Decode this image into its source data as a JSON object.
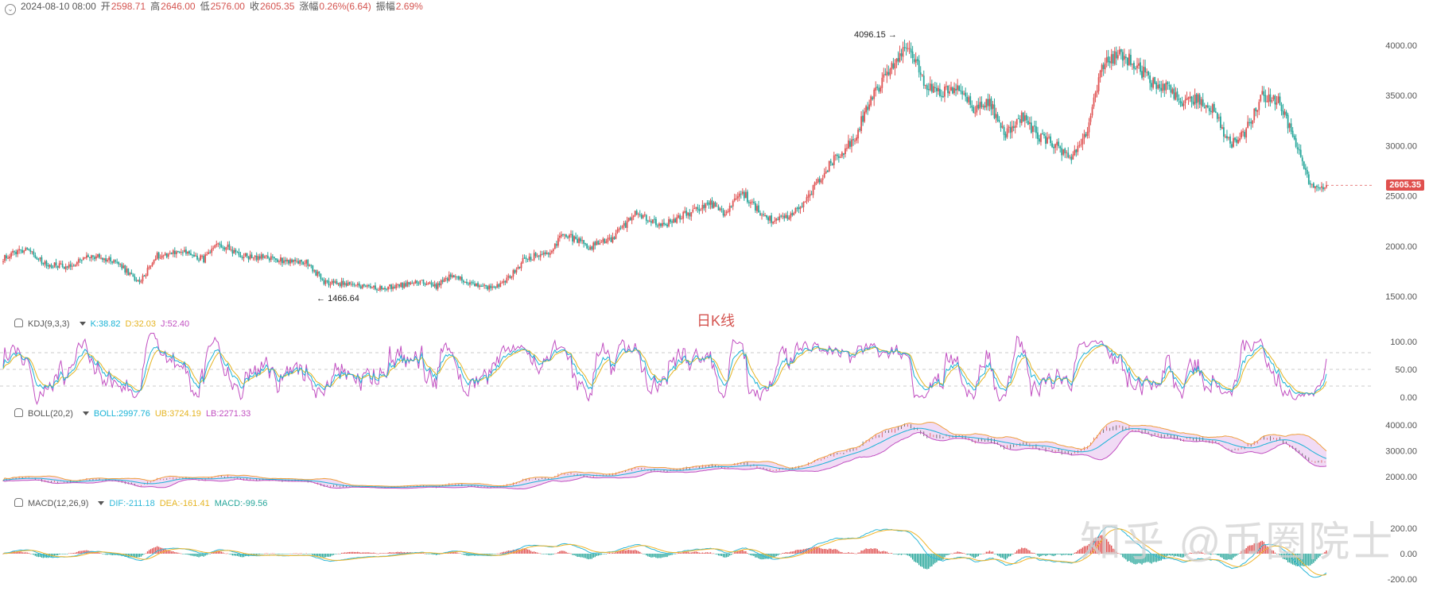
{
  "header": {
    "date": "2024-08-10 08:00",
    "open_label": "开",
    "open": "2598.71",
    "high_label": "高",
    "high": "2646.00",
    "low_label": "低",
    "low": "2576.00",
    "close_label": "收",
    "close": "2605.35",
    "change_label": "涨幅",
    "change": "0.26%(6.64)",
    "amp_label": "振幅",
    "amp": "2.69%"
  },
  "caption": "日K线",
  "watermark": "知乎 @币圈院士",
  "price_tag": "2605.35",
  "colors": {
    "up": "#e05353",
    "down": "#26a69a",
    "k": "#1ab3d6",
    "d": "#e5b422",
    "j": "#c14fc1",
    "boll_mid": "#1ab3d6",
    "boll_ub": "#f0a03c",
    "boll_lb": "#c14fc1",
    "boll_fill": "#f1dbf5",
    "dif": "#2fb8d8",
    "dea": "#f0b428"
  },
  "kdj": {
    "title": "KDJ(9,3,3)",
    "k": "K:38.82",
    "d": "D:32.03",
    "j": "J:52.40"
  },
  "boll": {
    "title": "BOLL(20,2)",
    "mid": "BOLL:2997.76",
    "ub": "UB:3724.19",
    "lb": "LB:2271.33"
  },
  "macd": {
    "title": "MACD(12,26,9)",
    "dif": "DIF:-211.18",
    "dea": "DEA:-161.41",
    "macd": "MACD:-99.56"
  },
  "chart_data": [
    {
      "type": "candlestick",
      "title": "",
      "y_ticks": [
        "4000.00",
        "3500.00",
        "3000.00",
        "2500.00",
        "2000.00",
        "1500.00"
      ],
      "ylim": [
        1400,
        4200
      ],
      "max_label": "4096.15",
      "min_label": "1466.64",
      "anchors": [
        [
          0,
          1880
        ],
        [
          15,
          1990
        ],
        [
          25,
          1820
        ],
        [
          40,
          1800
        ],
        [
          55,
          1900
        ],
        [
          70,
          1850
        ],
        [
          85,
          1630
        ],
        [
          95,
          1900
        ],
        [
          110,
          1950
        ],
        [
          125,
          1870
        ],
        [
          135,
          2020
        ],
        [
          150,
          1900
        ],
        [
          170,
          1870
        ],
        [
          190,
          1830
        ],
        [
          200,
          1640
        ],
        [
          215,
          1620
        ],
        [
          230,
          1580
        ],
        [
          245,
          1600
        ],
        [
          260,
          1640
        ],
        [
          270,
          1600
        ],
        [
          280,
          1720
        ],
        [
          290,
          1620
        ],
        [
          305,
          1580
        ],
        [
          315,
          1680
        ],
        [
          325,
          1870
        ],
        [
          340,
          1940
        ],
        [
          350,
          2120
        ],
        [
          365,
          1990
        ],
        [
          380,
          2080
        ],
        [
          395,
          2340
        ],
        [
          410,
          2200
        ],
        [
          425,
          2310
        ],
        [
          440,
          2420
        ],
        [
          450,
          2330
        ],
        [
          460,
          2560
        ],
        [
          470,
          2360
        ],
        [
          480,
          2260
        ],
        [
          490,
          2290
        ],
        [
          500,
          2450
        ],
        [
          510,
          2700
        ],
        [
          520,
          2900
        ],
        [
          530,
          3050
        ],
        [
          540,
          3450
        ],
        [
          550,
          3700
        ],
        [
          560,
          3950
        ],
        [
          565,
          4000
        ],
        [
          575,
          3580
        ],
        [
          585,
          3530
        ],
        [
          595,
          3600
        ],
        [
          605,
          3350
        ],
        [
          615,
          3420
        ],
        [
          625,
          3100
        ],
        [
          635,
          3300
        ],
        [
          645,
          3100
        ],
        [
          655,
          3020
        ],
        [
          665,
          2870
        ],
        [
          675,
          3120
        ],
        [
          685,
          3820
        ],
        [
          695,
          3900
        ],
        [
          705,
          3830
        ],
        [
          715,
          3650
        ],
        [
          725,
          3580
        ],
        [
          735,
          3420
        ],
        [
          745,
          3470
        ],
        [
          755,
          3350
        ],
        [
          765,
          3000
        ],
        [
          775,
          3150
        ],
        [
          785,
          3500
        ],
        [
          795,
          3440
        ],
        [
          805,
          3050
        ],
        [
          815,
          2620
        ],
        [
          820,
          2590
        ],
        [
          825,
          2605
        ]
      ]
    },
    {
      "type": "line",
      "title": "",
      "series": [
        {
          "name": "K"
        },
        {
          "name": "D"
        },
        {
          "name": "J"
        }
      ],
      "y_ticks": [
        "100.00",
        "50.00",
        "0.00"
      ],
      "ylim": [
        -10,
        110
      ],
      "last": {
        "K": 38.82,
        "D": 32.03,
        "J": 52.4
      }
    },
    {
      "type": "line",
      "title": "",
      "series": [
        {
          "name": "BOLL"
        },
        {
          "name": "UB"
        },
        {
          "name": "LB"
        }
      ],
      "y_ticks": [
        "4000.00",
        "3000.00",
        "2000.00"
      ],
      "ylim": [
        1400,
        4200
      ],
      "last": {
        "BOLL": 2997.76,
        "UB": 3724.19,
        "LB": 2271.33
      }
    },
    {
      "type": "bar",
      "title": "",
      "series": [
        {
          "name": "DIF"
        },
        {
          "name": "DEA"
        },
        {
          "name": "MACD"
        }
      ],
      "y_ticks": [
        "200.00",
        "0.00",
        "-200.00"
      ],
      "ylim": [
        -230,
        330
      ],
      "last": {
        "DIF": -211.18,
        "DEA": -161.41,
        "MACD": -99.56
      }
    }
  ]
}
